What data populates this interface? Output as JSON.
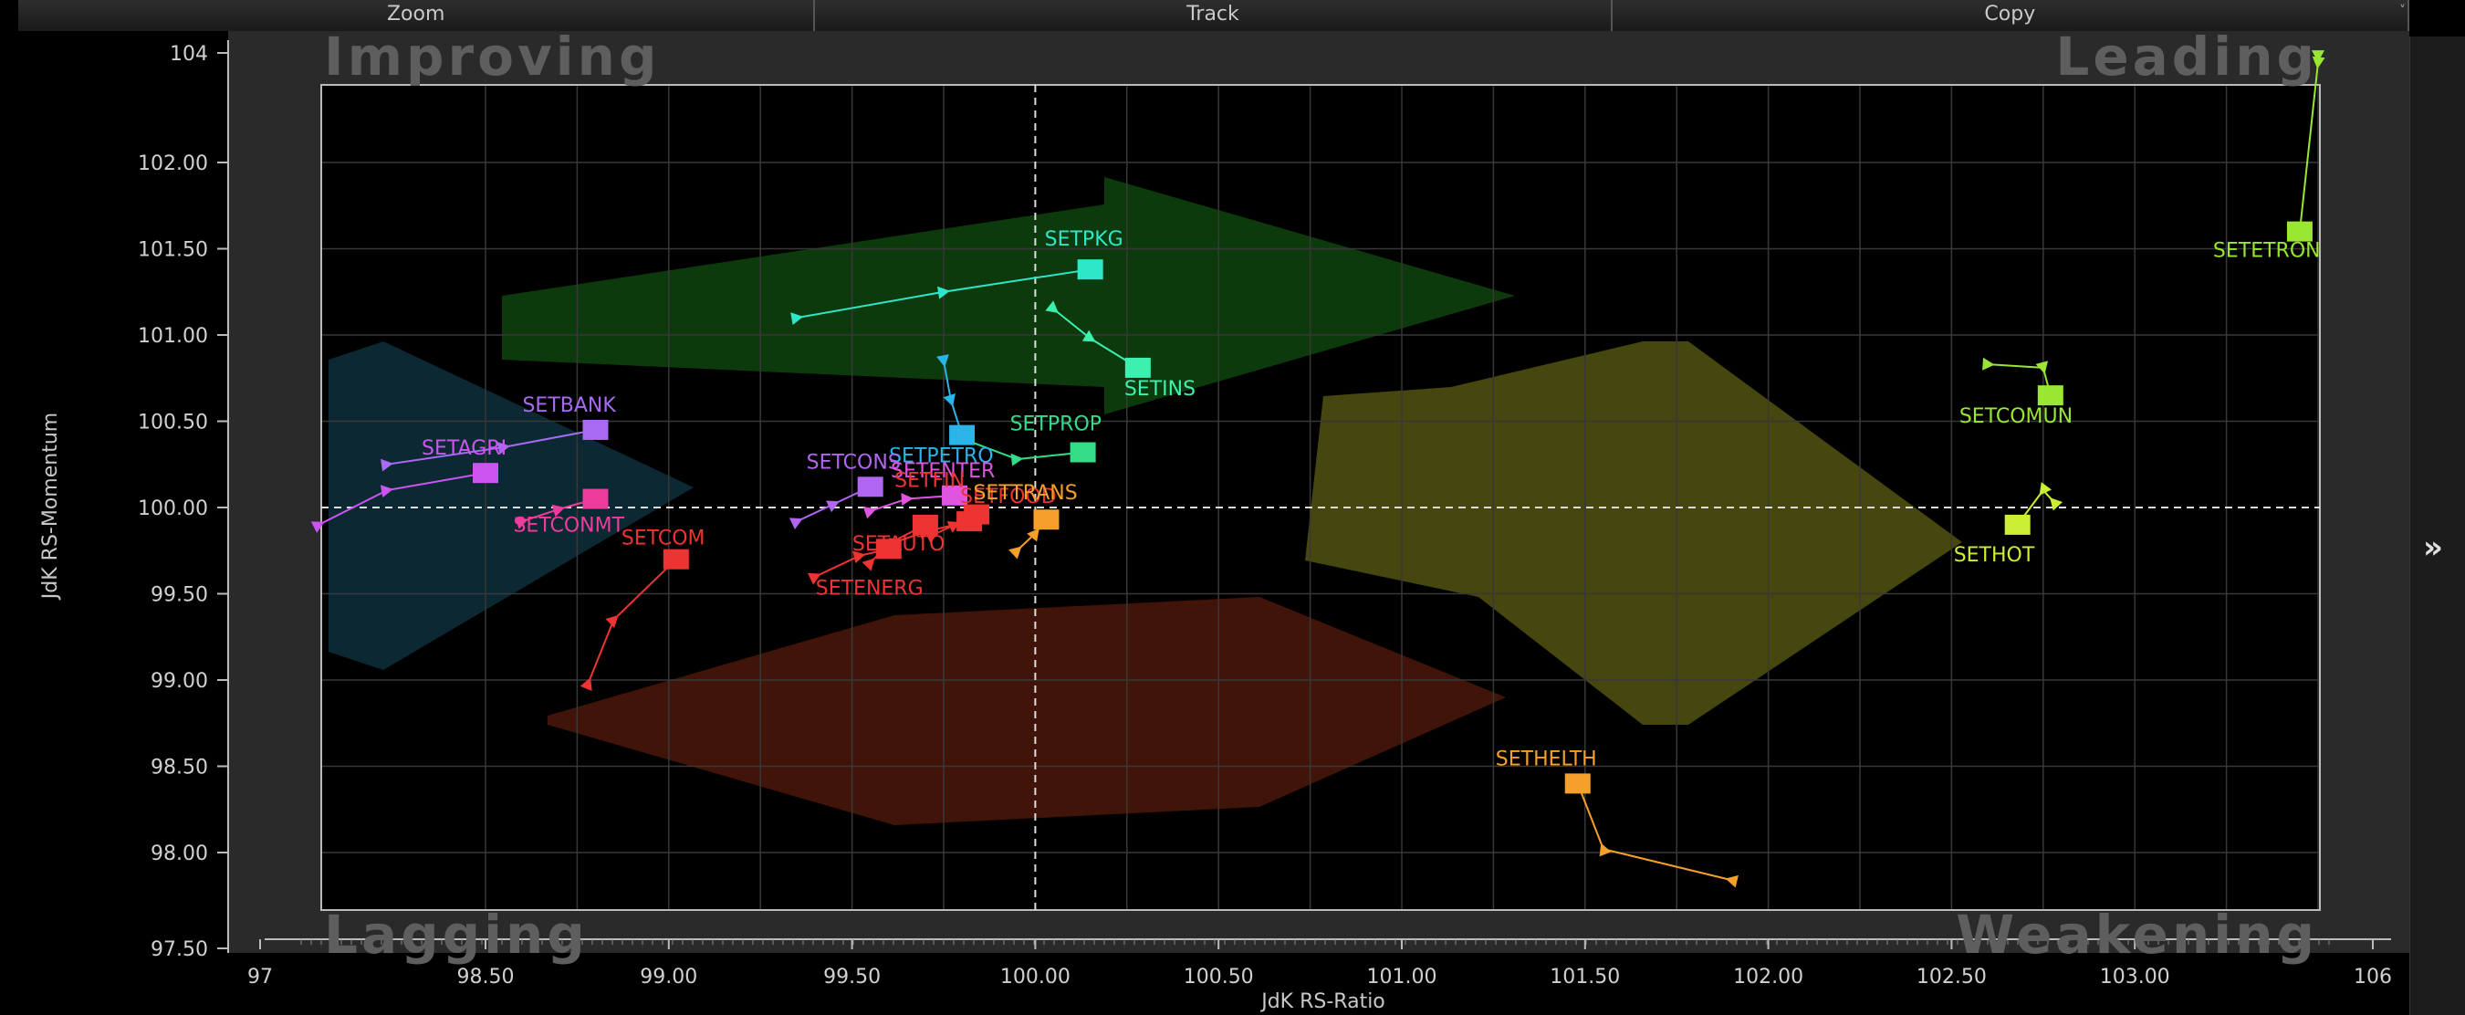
{
  "toolbar": {
    "zoom_label": "Zoom",
    "track_label": "Track",
    "copy_label": "Copy",
    "more_glyph": "˅"
  },
  "sidebar": {
    "toggle_glyph": "»"
  },
  "chart_data": {
    "type": "scatter",
    "xlabel": "JdK RS-Ratio",
    "ylabel": "JdK RS-Momentum",
    "xlim": [
      97,
      106
    ],
    "ylim": [
      97.5,
      104
    ],
    "x_ticks": [
      {
        "v": 97,
        "label": "97"
      },
      {
        "v": 98.5,
        "label": "98.50"
      },
      {
        "v": 99,
        "label": "99.00"
      },
      {
        "v": 99.5,
        "label": "99.50"
      },
      {
        "v": 100,
        "label": "100.00"
      },
      {
        "v": 100.5,
        "label": "100.50"
      },
      {
        "v": 101,
        "label": "101.00"
      },
      {
        "v": 101.5,
        "label": "101.50"
      },
      {
        "v": 102,
        "label": "102.00"
      },
      {
        "v": 102.5,
        "label": "102.50"
      },
      {
        "v": 103,
        "label": "103.00"
      },
      {
        "v": 106,
        "label": "106"
      }
    ],
    "y_ticks": [
      {
        "v": 97.5,
        "label": "97.50"
      },
      {
        "v": 98,
        "label": "98.00"
      },
      {
        "v": 98.5,
        "label": "98.50"
      },
      {
        "v": 99,
        "label": "99.00"
      },
      {
        "v": 99.5,
        "label": "99.50"
      },
      {
        "v": 100,
        "label": "100.00"
      },
      {
        "v": 100.5,
        "label": "100.50"
      },
      {
        "v": 101,
        "label": "101.00"
      },
      {
        "v": 101.5,
        "label": "101.50"
      },
      {
        "v": 102,
        "label": "102.00"
      },
      {
        "v": 104,
        "label": "104"
      }
    ],
    "quadrants": {
      "top_left": "Improving",
      "top_right": "Leading",
      "bottom_left": "Lagging",
      "bottom_right": "Weakening"
    },
    "grid": true,
    "series": [
      {
        "name": "SETPKG",
        "color": "#2ee6c8",
        "x": [
          99.35,
          99.75,
          100.15
        ],
        "y": [
          101.1,
          101.25,
          101.38
        ]
      },
      {
        "name": "SETINS",
        "color": "#3df0b0",
        "x": [
          100.05,
          100.15,
          100.28
        ],
        "y": [
          101.15,
          100.98,
          100.81
        ]
      },
      {
        "name": "SETPETRO",
        "color": "#2ab4e8",
        "x": [
          99.75,
          99.77,
          99.8
        ],
        "y": [
          100.85,
          100.62,
          100.42
        ]
      },
      {
        "name": "SETPROP",
        "color": "#33dd88",
        "x": [
          99.8,
          99.95,
          100.13
        ],
        "y": [
          100.4,
          100.28,
          100.32
        ]
      },
      {
        "name": "SETBANK",
        "color": "#a86af0",
        "x": [
          98.35,
          98.55,
          98.8
        ],
        "y": [
          100.25,
          100.35,
          100.45
        ]
      },
      {
        "name": "SETAGRI",
        "color": "#cc55f0",
        "x": [
          98.2,
          98.35,
          98.5
        ],
        "y": [
          99.9,
          100.1,
          100.2
        ]
      },
      {
        "name": "SETCONS",
        "color": "#b066f0",
        "x": [
          99.35,
          99.45,
          99.55
        ],
        "y": [
          99.92,
          100.02,
          100.12
        ]
      },
      {
        "name": "SETENTER",
        "color": "#e055e0",
        "x": [
          99.55,
          99.65,
          99.78
        ],
        "y": [
          99.98,
          100.05,
          100.07
        ]
      },
      {
        "name": "SETCONMT",
        "color": "#ee3c9c",
        "x": [
          98.6,
          98.7,
          98.8
        ],
        "y": [
          99.92,
          99.99,
          100.05
        ]
      },
      {
        "name": "SETCOM",
        "color": "#ee3333",
        "x": [
          98.78,
          98.85,
          99.02
        ],
        "y": [
          98.98,
          99.35,
          99.7
        ]
      },
      {
        "name": "SETAUTO",
        "color": "#ee3333",
        "x": [
          99.55,
          99.6,
          99.7
        ],
        "y": [
          99.68,
          99.79,
          99.9
        ]
      },
      {
        "name": "SETENERG",
        "color": "#ee3333",
        "x": [
          99.4,
          99.52,
          99.6
        ],
        "y": [
          99.6,
          99.72,
          99.76
        ]
      },
      {
        "name": "SETFOOD",
        "color": "#ee3333",
        "x": [
          99.62,
          99.7,
          99.82
        ],
        "y": [
          99.8,
          99.86,
          99.92
        ]
      },
      {
        "name": "SETFIN",
        "color": "#ee3333",
        "x": [
          99.72,
          99.78,
          99.84
        ],
        "y": [
          99.84,
          99.9,
          99.96
        ]
      },
      {
        "name": "SETTRANS",
        "color": "#f5a02a",
        "x": [
          99.95,
          100.0,
          100.03
        ],
        "y": [
          99.75,
          99.85,
          99.93
        ]
      },
      {
        "name": "SETHELTH",
        "color": "#f5a02a",
        "x": [
          101.9,
          101.55,
          101.48
        ],
        "y": [
          97.88,
          98.02,
          98.4
        ]
      },
      {
        "name": "SETETRON",
        "color": "#99e633",
        "x": [
          103.5,
          103.5,
          103.45
        ],
        "y": [
          103.85,
          103.5,
          101.6
        ]
      },
      {
        "name": "SETCOMUN",
        "color": "#99e633",
        "x": [
          102.6,
          102.75,
          102.77
        ],
        "y": [
          100.83,
          100.81,
          100.65
        ]
      },
      {
        "name": "SETHOT",
        "color": "#ccee33",
        "x": [
          102.78,
          102.75,
          102.68
        ],
        "y": [
          100.03,
          100.1,
          99.9
        ]
      }
    ]
  }
}
